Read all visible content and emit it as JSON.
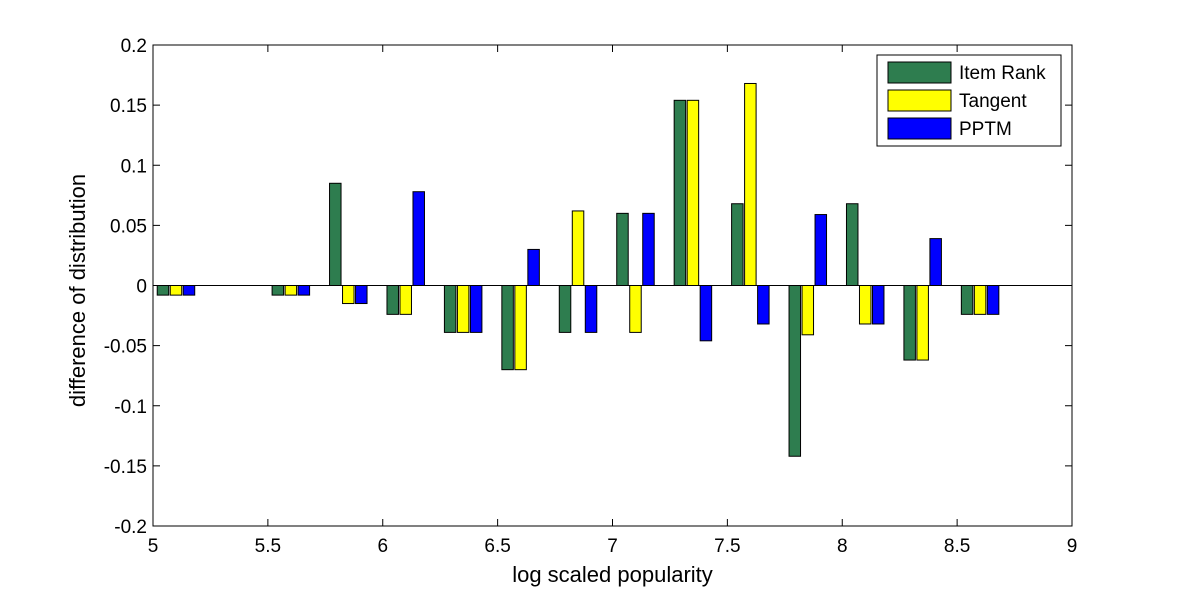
{
  "chart_data": {
    "type": "bar",
    "title": "",
    "xlabel": "log scaled popularity",
    "ylabel": "difference of distribution",
    "xlim": [
      5,
      9
    ],
    "ylim": [
      -0.2,
      0.2
    ],
    "xticks": [
      "5",
      "5.5",
      "6",
      "6.5",
      "7",
      "7.5",
      "8",
      "8.5",
      "9"
    ],
    "yticks": [
      "-0.2",
      "-0.15",
      "-0.1",
      "-0.05",
      "0",
      "0.05",
      "0.1",
      "0.15",
      "0.2"
    ],
    "grid": false,
    "legend_position": "top-right",
    "x": [
      5.1,
      5.6,
      5.85,
      6.1,
      6.35,
      6.6,
      6.85,
      7.1,
      7.35,
      7.6,
      7.85,
      8.1,
      8.35,
      8.6
    ],
    "series": [
      {
        "name": "Item Rank",
        "color": "#2e7d4f",
        "values": [
          -0.008,
          -0.008,
          0.085,
          -0.024,
          -0.039,
          -0.07,
          -0.039,
          0.06,
          0.154,
          0.068,
          -0.142,
          0.068,
          -0.062,
          -0.024
        ]
      },
      {
        "name": "Tangent",
        "color": "#ffff00",
        "values": [
          -0.008,
          -0.008,
          -0.015,
          -0.024,
          -0.039,
          -0.07,
          0.062,
          -0.039,
          0.154,
          0.168,
          -0.041,
          -0.032,
          -0.062,
          -0.024
        ]
      },
      {
        "name": "PPTM",
        "color": "#0000ff",
        "values": [
          -0.008,
          -0.008,
          -0.015,
          0.078,
          -0.039,
          0.03,
          -0.039,
          0.06,
          -0.046,
          -0.032,
          0.059,
          -0.032,
          0.039,
          -0.024
        ]
      }
    ]
  }
}
